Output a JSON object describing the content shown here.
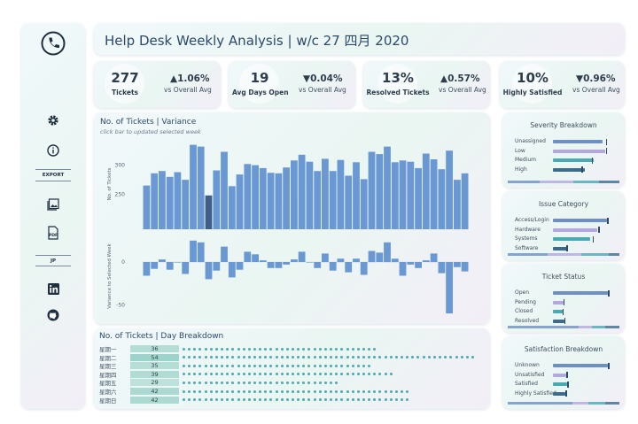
{
  "header": {
    "title": "Help Desk Weekly Analysis | w/c 27 四月 2020"
  },
  "sidebar": {
    "export_label": "EXPORT",
    "jp_label": "JP",
    "icons": [
      "phone-icon",
      "gear-icon",
      "info-icon",
      "image-export-icon",
      "pdf-export-icon",
      "linkedin-icon",
      "github-icon"
    ]
  },
  "kpis": [
    {
      "value": "277",
      "label": "Tickets",
      "change": "▲1.06%",
      "sub": "vs Overall Avg"
    },
    {
      "value": "19",
      "label": "Avg Days Open",
      "change": "▼0.04%",
      "sub": "vs Overall Avg"
    },
    {
      "value": "13%",
      "label": "Resolved Tickets",
      "change": "▲0.57%",
      "sub": "vs Overall Avg"
    },
    {
      "value": "10%",
      "label": "Highly Satisfied",
      "change": "▼0.96%",
      "sub": "vs Overall Avg"
    }
  ],
  "variance": {
    "title": "No. of Tickets | Variance",
    "subtitle": "click bar to updated selected week"
  },
  "day_breakdown": {
    "title": "No. of Tickets | Day Breakdown",
    "rows": [
      {
        "day": "星期一",
        "value": "36"
      },
      {
        "day": "星期二",
        "value": "54"
      },
      {
        "day": "星期三",
        "value": "35"
      },
      {
        "day": "星期四",
        "value": "39"
      },
      {
        "day": "星期五",
        "value": "29"
      },
      {
        "day": "星期六",
        "value": "42"
      },
      {
        "day": "星期日",
        "value": "42"
      }
    ]
  },
  "panels": [
    {
      "title": "Severity Breakdown",
      "rows": [
        {
          "label": "Unassigned",
          "value": 0.88,
          "marker": 0.93,
          "color": "#6d8fc4"
        },
        {
          "label": "Low",
          "value": 0.92,
          "marker": 0.93,
          "color": "#b3a7e0"
        },
        {
          "label": "Medium",
          "value": 0.72,
          "marker": 0.68,
          "color": "#4aa9b3"
        },
        {
          "label": "High",
          "value": 0.56,
          "marker": 0.5,
          "color": "#3b6c8c"
        }
      ]
    },
    {
      "title": "Issue Category",
      "rows": [
        {
          "label": "Access/Login",
          "value": 0.95,
          "marker": 0.96,
          "color": "#6d8fc4"
        },
        {
          "label": "Hardware",
          "value": 0.78,
          "marker": 0.8,
          "color": "#b3a7e0"
        },
        {
          "label": "Systems",
          "value": 0.66,
          "marker": 0.7,
          "color": "#4aa9b3"
        },
        {
          "label": "Software",
          "value": 0.25,
          "marker": 0.24,
          "color": "#3b6c8c"
        }
      ]
    },
    {
      "title": "Ticket Status",
      "rows": [
        {
          "label": "Open",
          "value": 0.97,
          "marker": 0.97,
          "color": "#6d8fc4"
        },
        {
          "label": "Pending",
          "value": 0.18,
          "marker": 0.18,
          "color": "#b3a7e0"
        },
        {
          "label": "Closed",
          "value": 0.18,
          "marker": 0.17,
          "color": "#4aa9b3"
        },
        {
          "label": "Resolved",
          "value": 0.2,
          "marker": 0.2,
          "color": "#3b6c8c"
        }
      ]
    },
    {
      "title": "Satisfaction Breakdown",
      "rows": [
        {
          "label": "Unknown",
          "value": 0.97,
          "marker": 0.97,
          "color": "#6d8fc4"
        },
        {
          "label": "Unsatisfied",
          "value": 0.24,
          "marker": 0.24,
          "color": "#b3a7e0"
        },
        {
          "label": "Satisfied",
          "value": 0.25,
          "marker": 0.25,
          "color": "#4aa9b3"
        },
        {
          "label": "Highly Satisfied",
          "value": 0.22,
          "marker": 0.22,
          "color": "#3b6c8c"
        }
      ]
    }
  ],
  "chart_data": [
    {
      "type": "bar",
      "title": "No. of Tickets | Variance",
      "ylabel": "No. of Tickets",
      "yticks": [
        250,
        300
      ],
      "ylim": [
        190,
        345
      ],
      "selected_index": 8,
      "values": [
        265,
        286,
        290,
        280,
        288,
        275,
        335,
        332,
        248,
        291,
        323,
        264,
        284,
        302,
        300,
        295,
        287,
        286,
        296,
        308,
        318,
        306,
        290,
        311,
        290,
        309,
        282,
        305,
        276,
        323,
        319,
        332,
        305,
        308,
        306,
        295,
        320,
        310,
        293,
        325,
        275,
        286
      ]
    },
    {
      "type": "bar",
      "title": "Variance to Selected Week",
      "ylabel": "Variance to Selected Week",
      "yticks": [
        0,
        -50
      ],
      "ylim": [
        -63,
        30
      ],
      "values": [
        -16,
        -8,
        3,
        -9,
        0,
        -14,
        25,
        23,
        -20,
        -10,
        18,
        -18,
        -9,
        12,
        9,
        2,
        -7,
        -7,
        -3,
        3,
        12,
        0,
        -7,
        10,
        -10,
        4,
        -12,
        4,
        -15,
        13,
        11,
        23,
        4,
        -16,
        -3,
        -7,
        2,
        10,
        -13,
        -60,
        -6,
        -11
      ]
    },
    {
      "type": "bar",
      "title": "No. of Tickets | Day Breakdown",
      "categories": [
        "星期一",
        "星期二",
        "星期三",
        "星期四",
        "星期五",
        "星期六",
        "星期日"
      ],
      "values": [
        36,
        54,
        35,
        39,
        29,
        42,
        42
      ]
    }
  ]
}
